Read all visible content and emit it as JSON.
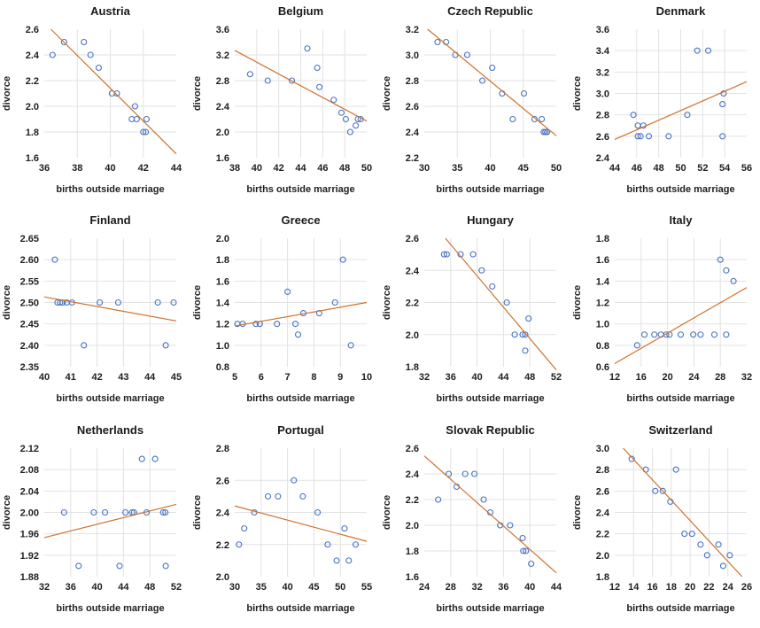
{
  "style": {
    "marker_color": "#4472C4",
    "trend_color": "#D0712B",
    "grid_color": "#E2E2E2",
    "text_color": "#1f1f1f",
    "background": "#ffffff"
  },
  "chart_data": [
    {
      "type": "scatter",
      "title": "Austria",
      "xlabel": "births outside marriage",
      "ylabel": "divorce",
      "xlim": [
        36,
        44
      ],
      "ylim": [
        1.6,
        2.6
      ],
      "xticks": [
        "36",
        "38",
        "40",
        "42",
        "44"
      ],
      "yticks": [
        "1.6",
        "1.8",
        "2.0",
        "2.2",
        "2.4",
        "2.6"
      ],
      "points": [
        [
          36.5,
          2.4
        ],
        [
          37.2,
          2.5
        ],
        [
          38.4,
          2.5
        ],
        [
          38.8,
          2.4
        ],
        [
          39.3,
          2.3
        ],
        [
          40.1,
          2.1
        ],
        [
          40.4,
          2.1
        ],
        [
          41.5,
          2.0
        ],
        [
          41.3,
          1.9
        ],
        [
          41.6,
          1.9
        ],
        [
          42.2,
          1.9
        ],
        [
          42.0,
          1.8
        ],
        [
          42.15,
          1.8
        ]
      ],
      "trend": [
        [
          36.4,
          2.6
        ],
        [
          44,
          1.63
        ]
      ]
    },
    {
      "type": "scatter",
      "title": "Belgium",
      "xlabel": "births outside marriage",
      "ylabel": "divorce",
      "xlim": [
        38,
        50
      ],
      "ylim": [
        1.6,
        3.6
      ],
      "xticks": [
        "38",
        "40",
        "42",
        "44",
        "46",
        "48",
        "50"
      ],
      "yticks": [
        "1.6",
        "2.0",
        "2.4",
        "2.8",
        "3.2",
        "3.6"
      ],
      "points": [
        [
          39.4,
          2.9
        ],
        [
          41.0,
          2.8
        ],
        [
          43.2,
          2.8
        ],
        [
          44.6,
          3.3
        ],
        [
          45.5,
          3.0
        ],
        [
          45.7,
          2.7
        ],
        [
          47.0,
          2.5
        ],
        [
          47.7,
          2.3
        ],
        [
          48.1,
          2.2
        ],
        [
          48.5,
          2.0
        ],
        [
          49.0,
          2.1
        ],
        [
          49.2,
          2.2
        ],
        [
          49.45,
          2.2
        ]
      ],
      "trend": [
        [
          38,
          3.27
        ],
        [
          50,
          2.17
        ]
      ]
    },
    {
      "type": "scatter",
      "title": "Czech Republic",
      "xlabel": "births outside marriage",
      "ylabel": "divorce",
      "xlim": [
        30,
        50
      ],
      "ylim": [
        2.2,
        3.2
      ],
      "xticks": [
        "30",
        "35",
        "40",
        "45",
        "50"
      ],
      "yticks": [
        "2.2",
        "2.4",
        "2.6",
        "2.8",
        "3.0",
        "3.2"
      ],
      "points": [
        [
          32,
          3.1
        ],
        [
          33.3,
          3.1
        ],
        [
          34.7,
          3.0
        ],
        [
          36.5,
          3.0
        ],
        [
          38.8,
          2.8
        ],
        [
          40.3,
          2.9
        ],
        [
          41.8,
          2.7
        ],
        [
          43.4,
          2.5
        ],
        [
          45.1,
          2.7
        ],
        [
          46.7,
          2.5
        ],
        [
          47.8,
          2.5
        ],
        [
          48.1,
          2.4
        ],
        [
          48.35,
          2.4
        ],
        [
          48.6,
          2.4
        ]
      ],
      "trend": [
        [
          30.5,
          3.2
        ],
        [
          50,
          2.37
        ]
      ]
    },
    {
      "type": "scatter",
      "title": "Denmark",
      "xlabel": "births outside marriage",
      "ylabel": "divorce",
      "xlim": [
        44,
        56
      ],
      "ylim": [
        2.4,
        3.6
      ],
      "xticks": [
        "44",
        "46",
        "48",
        "50",
        "52",
        "54",
        "56"
      ],
      "yticks": [
        "2.4",
        "2.6",
        "2.8",
        "3.0",
        "3.2",
        "3.4",
        "3.6"
      ],
      "points": [
        [
          45.7,
          2.8
        ],
        [
          46.1,
          2.7
        ],
        [
          46.6,
          2.7
        ],
        [
          46.1,
          2.6
        ],
        [
          46.35,
          2.6
        ],
        [
          47.1,
          2.6
        ],
        [
          48.9,
          2.6
        ],
        [
          50.6,
          2.8
        ],
        [
          51.5,
          3.4
        ],
        [
          52.5,
          3.4
        ],
        [
          53.8,
          2.9
        ],
        [
          53.9,
          3.0
        ],
        [
          53.8,
          2.6
        ]
      ],
      "trend": [
        [
          44,
          2.57
        ],
        [
          56,
          3.11
        ]
      ]
    },
    {
      "type": "scatter",
      "title": "Finland",
      "xlabel": "births outside marriage",
      "ylabel": "divorce",
      "xlim": [
        40,
        45
      ],
      "ylim": [
        2.35,
        2.65
      ],
      "xticks": [
        "40",
        "41",
        "42",
        "43",
        "44",
        "45"
      ],
      "yticks": [
        "2.35",
        "2.40",
        "2.45",
        "2.50",
        "2.55",
        "2.60",
        "2.65"
      ],
      "points": [
        [
          40.4,
          2.6
        ],
        [
          40.5,
          2.5
        ],
        [
          40.6,
          2.5
        ],
        [
          40.7,
          2.5
        ],
        [
          40.85,
          2.5
        ],
        [
          41.05,
          2.5
        ],
        [
          41.5,
          2.4
        ],
        [
          42.1,
          2.5
        ],
        [
          42.8,
          2.5
        ],
        [
          44.3,
          2.5
        ],
        [
          44.6,
          2.4
        ],
        [
          44.9,
          2.5
        ]
      ],
      "trend": [
        [
          40,
          2.513
        ],
        [
          45,
          2.457
        ]
      ]
    },
    {
      "type": "scatter",
      "title": "Greece",
      "xlabel": "births outside marriage",
      "ylabel": "divorce",
      "xlim": [
        5,
        10
      ],
      "ylim": [
        0.8,
        2.0
      ],
      "xticks": [
        "5",
        "6",
        "7",
        "8",
        "9",
        "10"
      ],
      "yticks": [
        "0.8",
        "1.0",
        "1.2",
        "1.4",
        "1.6",
        "1.8",
        "2.0"
      ],
      "points": [
        [
          5.1,
          1.2
        ],
        [
          5.3,
          1.2
        ],
        [
          5.8,
          1.2
        ],
        [
          5.95,
          1.2
        ],
        [
          6.6,
          1.2
        ],
        [
          7.0,
          1.5
        ],
        [
          7.3,
          1.2
        ],
        [
          7.4,
          1.1
        ],
        [
          7.6,
          1.3
        ],
        [
          8.2,
          1.3
        ],
        [
          8.8,
          1.4
        ],
        [
          9.1,
          1.8
        ],
        [
          9.4,
          1.0
        ]
      ],
      "trend": [
        [
          5,
          1.18
        ],
        [
          10,
          1.4
        ]
      ]
    },
    {
      "type": "scatter",
      "title": "Hungary",
      "xlabel": "births outside marriage",
      "ylabel": "divorce",
      "xlim": [
        32,
        52
      ],
      "ylim": [
        1.8,
        2.6
      ],
      "xticks": [
        "32",
        "36",
        "40",
        "44",
        "48",
        "52"
      ],
      "yticks": [
        "1.8",
        "2.0",
        "2.2",
        "2.4",
        "2.6"
      ],
      "points": [
        [
          35.0,
          2.5
        ],
        [
          35.4,
          2.5
        ],
        [
          37.5,
          2.5
        ],
        [
          39.4,
          2.5
        ],
        [
          40.7,
          2.4
        ],
        [
          42.3,
          2.3
        ],
        [
          44.5,
          2.2
        ],
        [
          45.7,
          2.0
        ],
        [
          46.9,
          2.0
        ],
        [
          47.3,
          2.0
        ],
        [
          47.8,
          2.1
        ],
        [
          47.3,
          1.9
        ]
      ],
      "trend": [
        [
          35.2,
          2.6
        ],
        [
          52,
          1.78
        ]
      ]
    },
    {
      "type": "scatter",
      "title": "Italy",
      "xlabel": "births outside marriage",
      "ylabel": "divorce",
      "xlim": [
        12,
        32
      ],
      "ylim": [
        0.6,
        1.8
      ],
      "xticks": [
        "12",
        "16",
        "20",
        "24",
        "28",
        "32"
      ],
      "yticks": [
        "0.6",
        "0.8",
        "1.0",
        "1.2",
        "1.4",
        "1.6",
        "1.8"
      ],
      "points": [
        [
          15.4,
          0.8
        ],
        [
          16.5,
          0.9
        ],
        [
          18.0,
          0.9
        ],
        [
          19.0,
          0.9
        ],
        [
          19.8,
          0.9
        ],
        [
          20.3,
          0.9
        ],
        [
          22.0,
          0.9
        ],
        [
          23.9,
          0.9
        ],
        [
          25.0,
          0.9
        ],
        [
          27.1,
          0.9
        ],
        [
          28.9,
          0.9
        ],
        [
          28.0,
          1.6
        ],
        [
          28.9,
          1.5
        ],
        [
          30.0,
          1.4
        ]
      ],
      "trend": [
        [
          12,
          0.63
        ],
        [
          32,
          1.34
        ]
      ]
    },
    {
      "type": "scatter",
      "title": "Netherlands",
      "xlabel": "births outside marriage",
      "ylabel": "divorce",
      "xlim": [
        32,
        52
      ],
      "ylim": [
        1.88,
        2.12
      ],
      "xticks": [
        "32",
        "36",
        "40",
        "44",
        "48",
        "52"
      ],
      "yticks": [
        "1.88",
        "1.92",
        "1.96",
        "2.00",
        "2.04",
        "2.08",
        "2.12"
      ],
      "points": [
        [
          35.0,
          2.0
        ],
        [
          37.2,
          1.9
        ],
        [
          39.5,
          2.0
        ],
        [
          41.2,
          2.0
        ],
        [
          43.4,
          1.9
        ],
        [
          44.3,
          2.0
        ],
        [
          45.3,
          2.0
        ],
        [
          45.6,
          2.0
        ],
        [
          46.8,
          2.1
        ],
        [
          47.5,
          2.0
        ],
        [
          48.8,
          2.1
        ],
        [
          50.0,
          2.0
        ],
        [
          50.35,
          2.0
        ],
        [
          50.4,
          1.9
        ]
      ],
      "trend": [
        [
          32,
          1.953
        ],
        [
          52,
          2.015
        ]
      ]
    },
    {
      "type": "scatter",
      "title": "Portugal",
      "xlabel": "births outside marriage",
      "ylabel": "divorce",
      "xlim": [
        30,
        55
      ],
      "ylim": [
        2.0,
        2.8
      ],
      "xticks": [
        "30",
        "35",
        "40",
        "45",
        "50",
        "55"
      ],
      "yticks": [
        "2.0",
        "2.2",
        "2.4",
        "2.6",
        "2.8"
      ],
      "points": [
        [
          30.8,
          2.2
        ],
        [
          31.8,
          2.3
        ],
        [
          33.7,
          2.4
        ],
        [
          36.3,
          2.5
        ],
        [
          38.2,
          2.5
        ],
        [
          41.2,
          2.6
        ],
        [
          42.9,
          2.5
        ],
        [
          45.7,
          2.4
        ],
        [
          47.6,
          2.2
        ],
        [
          49.3,
          2.1
        ],
        [
          50.8,
          2.3
        ],
        [
          51.6,
          2.1
        ],
        [
          52.9,
          2.2
        ]
      ],
      "trend": [
        [
          30,
          2.44
        ],
        [
          55,
          2.22
        ]
      ]
    },
    {
      "type": "scatter",
      "title": "Slovak Republic",
      "xlabel": "births outside marriage",
      "ylabel": "divorce",
      "xlim": [
        24,
        44
      ],
      "ylim": [
        1.6,
        2.6
      ],
      "xticks": [
        "24",
        "28",
        "32",
        "36",
        "40",
        "44"
      ],
      "yticks": [
        "1.6",
        "1.8",
        "2.0",
        "2.2",
        "2.4",
        "2.6"
      ],
      "points": [
        [
          26.1,
          2.2
        ],
        [
          27.7,
          2.4
        ],
        [
          28.9,
          2.3
        ],
        [
          30.2,
          2.4
        ],
        [
          31.6,
          2.4
        ],
        [
          33.0,
          2.2
        ],
        [
          34.0,
          2.1
        ],
        [
          35.5,
          2.0
        ],
        [
          37.0,
          2.0
        ],
        [
          38.9,
          1.9
        ],
        [
          39.0,
          1.8
        ],
        [
          39.4,
          1.8
        ],
        [
          40.2,
          1.7
        ]
      ],
      "trend": [
        [
          24,
          2.54
        ],
        [
          44,
          1.63
        ]
      ]
    },
    {
      "type": "scatter",
      "title": "Switzerland",
      "xlabel": "births outside marriage",
      "ylabel": "divorce",
      "xlim": [
        12,
        26
      ],
      "ylim": [
        1.8,
        3.0
      ],
      "xticks": [
        "12",
        "14",
        "16",
        "18",
        "20",
        "22",
        "24",
        "26"
      ],
      "yticks": [
        "1.8",
        "2.0",
        "2.2",
        "2.4",
        "2.6",
        "2.8",
        "3.0"
      ],
      "points": [
        [
          13.8,
          2.9
        ],
        [
          15.3,
          2.8
        ],
        [
          16.3,
          2.6
        ],
        [
          17.1,
          2.6
        ],
        [
          17.9,
          2.5
        ],
        [
          18.5,
          2.8
        ],
        [
          19.4,
          2.2
        ],
        [
          20.2,
          2.2
        ],
        [
          21.1,
          2.1
        ],
        [
          21.8,
          2.0
        ],
        [
          23.0,
          2.1
        ],
        [
          23.5,
          1.9
        ],
        [
          24.2,
          2.0
        ]
      ],
      "trend": [
        [
          12.9,
          3.0
        ],
        [
          25.5,
          1.8
        ]
      ]
    }
  ]
}
